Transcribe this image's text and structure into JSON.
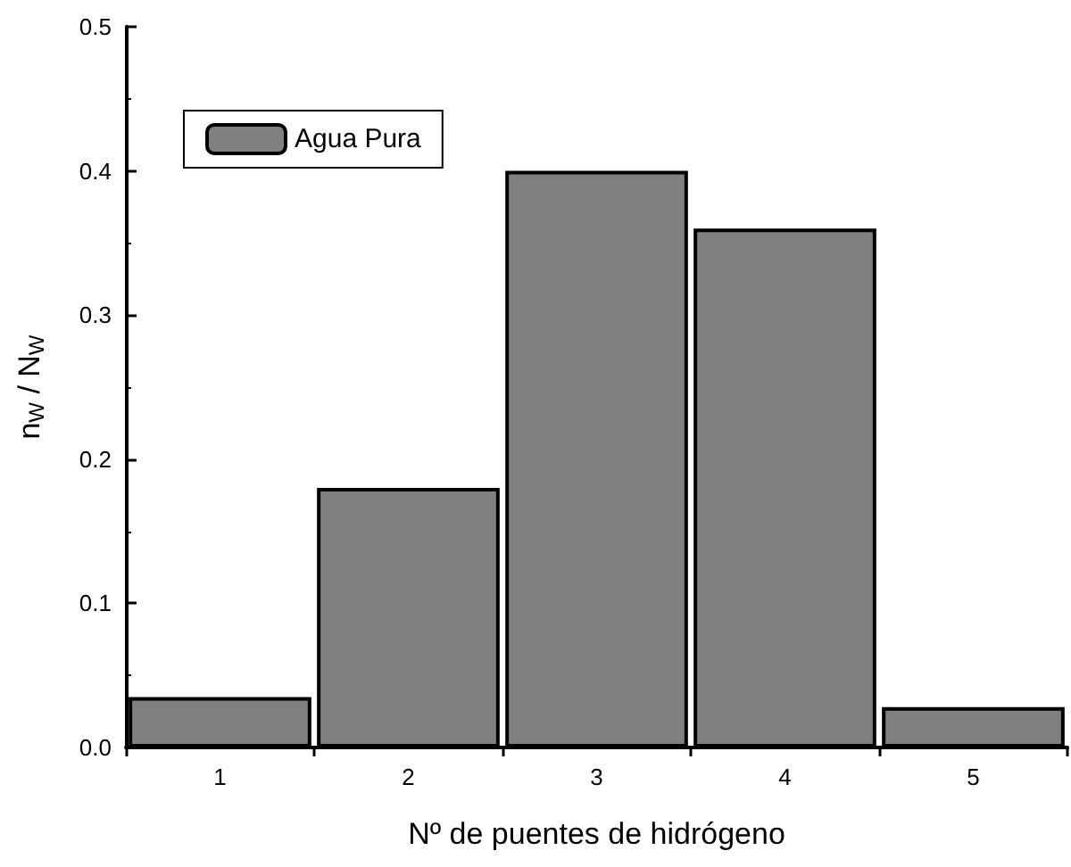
{
  "chart_data": {
    "type": "bar",
    "xlabel": "Nº de puentes de hidrógeno",
    "ylabel": "n$_{W}$ / N$_{W}$",
    "categories": [
      "1",
      "2",
      "3",
      "4",
      "5"
    ],
    "series": [
      {
        "name": "Agua Pura",
        "color": "#808080",
        "values": [
          0.035,
          0.18,
          0.4,
          0.36,
          0.028
        ]
      }
    ],
    "ylim": [
      0,
      0.5
    ],
    "yticks": [
      {
        "value": 0,
        "label": "0.0"
      },
      {
        "value": 0.1,
        "label": "0.1"
      },
      {
        "value": 0.2,
        "label": "0.2"
      },
      {
        "value": 0.3,
        "label": "0.3"
      },
      {
        "value": 0.4,
        "label": "0.4"
      },
      {
        "value": 0.5,
        "label": "0.5"
      }
    ],
    "grid": false,
    "legend": "top left"
  }
}
